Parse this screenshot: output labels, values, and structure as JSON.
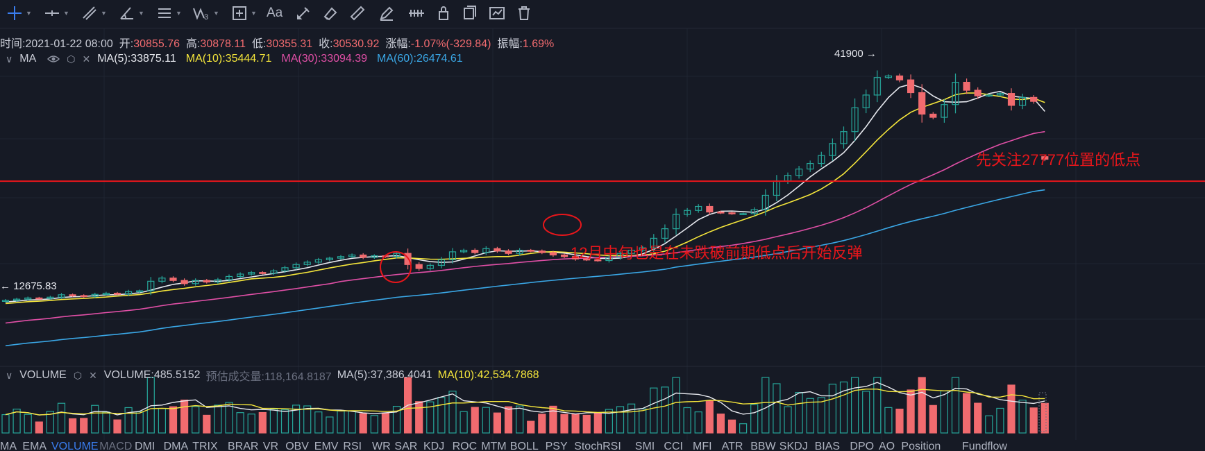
{
  "toolbar": {
    "tools": [
      {
        "name": "crosshair-icon",
        "active": true
      },
      {
        "name": "horizontal-line-icon"
      },
      {
        "name": "trend-lines-icon"
      },
      {
        "name": "angle-tool-icon"
      },
      {
        "name": "fibonacci-icon"
      },
      {
        "name": "wave-pattern-icon"
      },
      {
        "name": "measure-icon"
      },
      {
        "name": "text-tool-icon",
        "text": "Aa"
      },
      {
        "name": "brush-icon"
      },
      {
        "name": "eraser-icon"
      },
      {
        "name": "ruler-icon"
      },
      {
        "name": "pen-icon"
      },
      {
        "name": "ruler-alt-icon"
      },
      {
        "name": "lock-icon"
      },
      {
        "name": "copy-icon"
      },
      {
        "name": "screenshot-icon"
      },
      {
        "name": "trash-icon"
      }
    ]
  },
  "ohlc": {
    "time_label": "时间:",
    "time": "2021-01-22 08:00",
    "open_label": "开:",
    "open": "30855.76",
    "high_label": "高:",
    "high": "30878.11",
    "low_label": "低:",
    "low": "30355.31",
    "close_label": "收:",
    "close": "30530.92",
    "change_label": "涨幅:",
    "change": "-1.07%(-329.84)",
    "amplitude_label": "振幅:",
    "amplitude": "1.69%"
  },
  "ma_legend": {
    "name": "MA",
    "items": [
      {
        "text": "MA(5):33875.11",
        "color": "#e6e8ee"
      },
      {
        "text": "MA(10):35444.71",
        "color": "#f5e63b"
      },
      {
        "text": "MA(30):33094.39",
        "color": "#e04fa6"
      },
      {
        "text": "MA(60):26474.61",
        "color": "#3aa7e6"
      }
    ]
  },
  "vol_legend": {
    "name": "VOLUME",
    "volume": "VOLUME:485.5152",
    "estimate": "预估成交量:118,164.8187",
    "ma5": "MA(5):37,386.4041",
    "ma10": "MA(10):42,534.7868"
  },
  "chart_labels": {
    "high_marker": "41900 →",
    "low_marker": "← 12675.83",
    "annotation_right": "先关注27777位置的低点",
    "annotation_middle": "12月中旬也是在未跌破前期低点后开始反弹"
  },
  "colors": {
    "up": "#26a69a",
    "down": "#f16b6f",
    "annotation": "#e8161b",
    "ma5": "#e6e8ee",
    "ma10": "#f5e63b",
    "ma30": "#e04fa6",
    "ma60": "#3aa7e6"
  },
  "chart_data": {
    "type": "candlestick",
    "price_series_close": [
      12800,
      12950,
      13100,
      13050,
      13200,
      13500,
      13400,
      13300,
      13550,
      13700,
      13600,
      13900,
      14000,
      15200,
      15600,
      15300,
      14900,
      15300,
      15100,
      15400,
      15800,
      16100,
      16300,
      16200,
      16500,
      16900,
      17300,
      17600,
      17900,
      18100,
      18300,
      18500,
      18200,
      18400,
      18300,
      18700,
      17300,
      16800,
      17200,
      17900,
      18900,
      19100,
      18800,
      19300,
      19000,
      18700,
      19100,
      19000,
      18800,
      18500,
      18300,
      18000,
      17900,
      17800,
      18200,
      18700,
      19100,
      19400,
      20600,
      21800,
      23600,
      24100,
      24600,
      23900,
      23800,
      23700,
      23700,
      24200,
      26000,
      27800,
      28500,
      29300,
      30000,
      31000,
      32500,
      34000,
      37000,
      38600,
      40800,
      41000,
      40500,
      38900,
      36200,
      35800,
      37400,
      40200,
      39200,
      38500,
      38600,
      38800,
      37300,
      38300,
      37800,
      30530.92
    ],
    "horizontal_line_value": 27777,
    "ma_current": {
      "MA(5)": 33875.11,
      "MA(10)": 35444.71,
      "MA(30)": 33094.39,
      "MA(60)": 26474.61
    },
    "high_label": 41900,
    "low_label": 12675.83
  },
  "tabs": [
    {
      "label": "MA"
    },
    {
      "label": "EMA"
    },
    {
      "label": "VOLUME",
      "active": true
    },
    {
      "label": "MACD",
      "dim": true
    },
    {
      "label": "DMI"
    },
    {
      "label": "DMA"
    },
    {
      "label": "TRIX"
    },
    {
      "label": "BRAR"
    },
    {
      "label": "VR"
    },
    {
      "label": "OBV"
    },
    {
      "label": "EMV"
    },
    {
      "label": "RSI"
    },
    {
      "label": "WR"
    },
    {
      "label": "SAR"
    },
    {
      "label": "KDJ"
    },
    {
      "label": "ROC"
    },
    {
      "label": "MTM"
    },
    {
      "label": "BOLL"
    },
    {
      "label": "PSY"
    },
    {
      "label": "StochRSI"
    },
    {
      "label": "SMI"
    },
    {
      "label": "CCI"
    },
    {
      "label": "MFI"
    },
    {
      "label": "ATR"
    },
    {
      "label": "BBW"
    },
    {
      "label": "SKDJ"
    },
    {
      "label": "BIAS"
    },
    {
      "label": "DPO"
    },
    {
      "label": "AO"
    },
    {
      "label": "Position"
    },
    {
      "label": "Fundflow"
    }
  ]
}
